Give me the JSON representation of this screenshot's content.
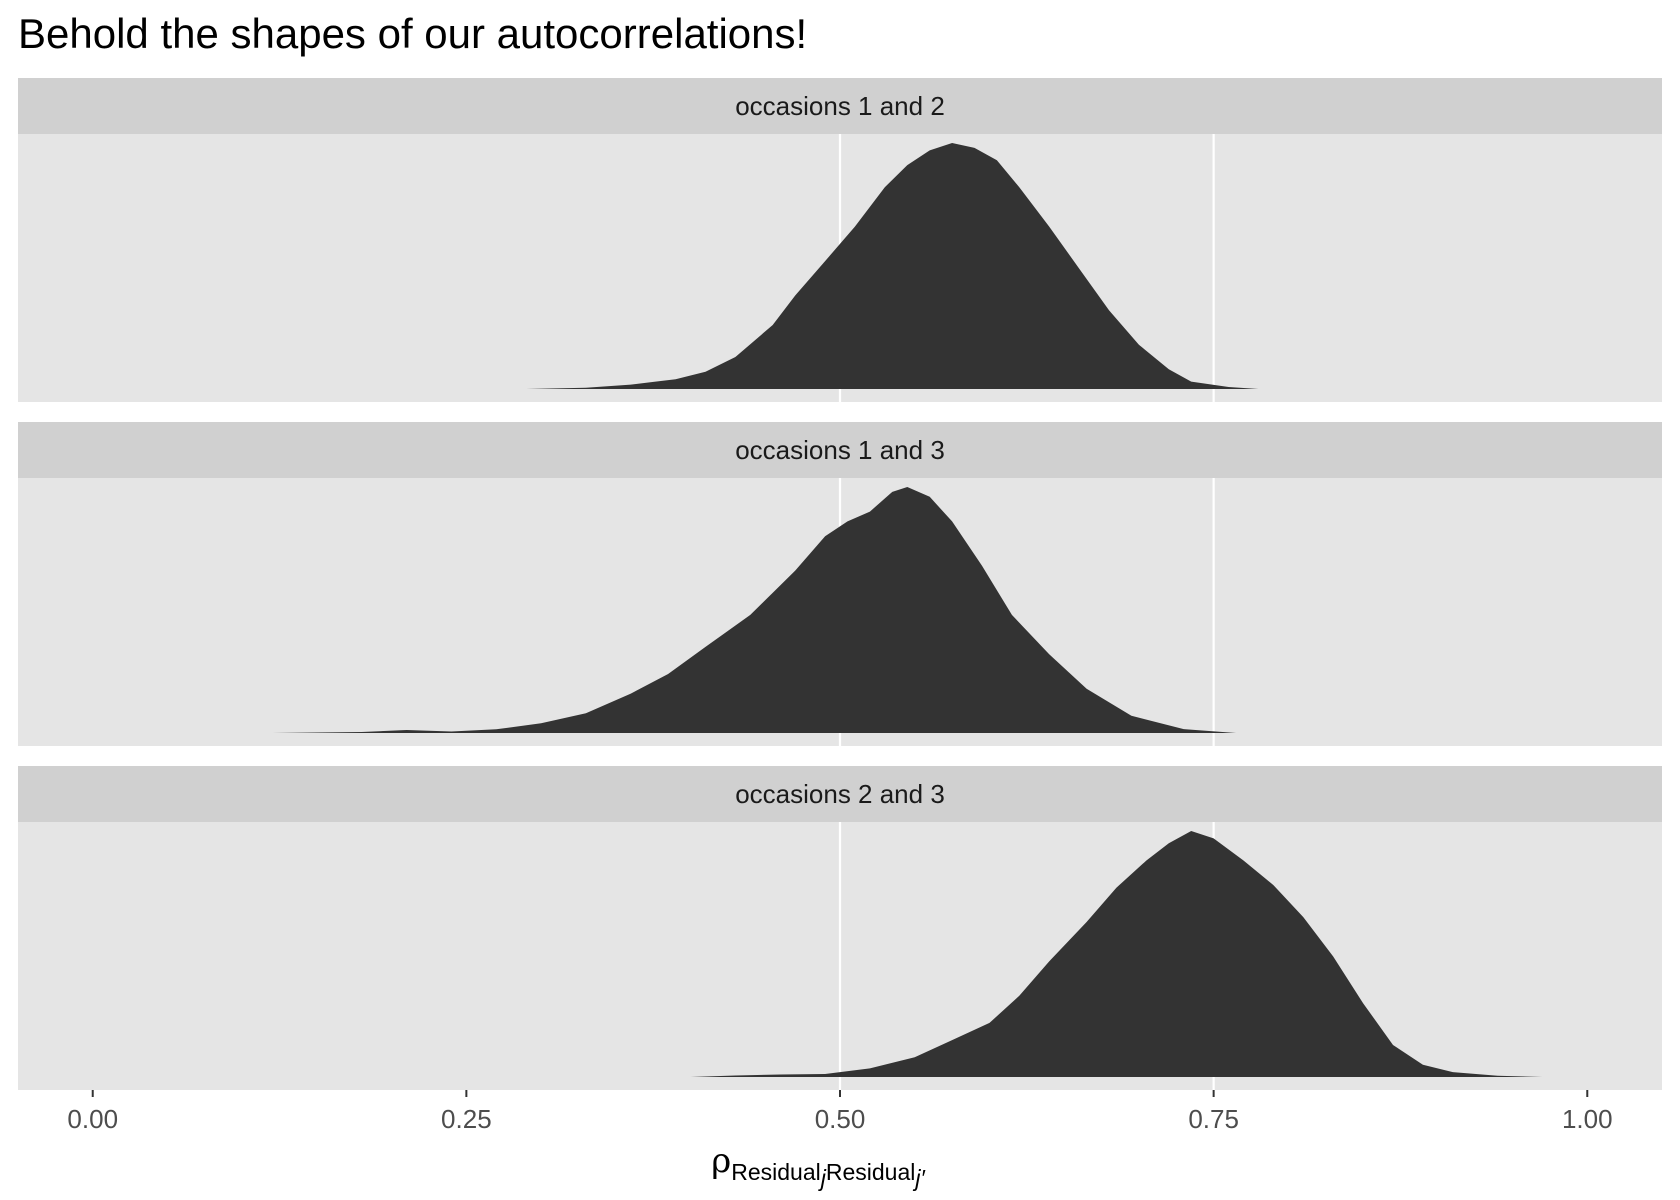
{
  "title": "Behold the shapes of our autocorrelations!",
  "colors": {
    "panel_background": "#e5e5e5",
    "strip_background": "#d0d0d0",
    "grid": "#ffffff",
    "density_fill": "#333333",
    "tick_text": "#4d4d4d"
  },
  "chart_data": {
    "type": "area",
    "title": "Behold the shapes of our autocorrelations!",
    "xlabel": "ρ Residual_j Residual_j'",
    "xlabel_parts": {
      "symbol": "ρ",
      "sub1": "Residual",
      "sub1_index": "j",
      "sub2": "Residual",
      "sub2_index": "j′"
    },
    "ylabel": "",
    "xlim": [
      -0.05,
      1.05
    ],
    "x_major_breaks": [
      0.5,
      0.75
    ],
    "x_ticks": [
      0.0,
      0.25,
      0.5,
      0.75,
      1.0
    ],
    "x_tick_labels": [
      "0.00",
      "0.25",
      "0.50",
      "0.75",
      "1.00"
    ],
    "grid": "vertical major lines only",
    "y_axis_shown": false,
    "facets": [
      {
        "strip": "occasions 1 and 2",
        "density": [
          [
            0.29,
            0.0
          ],
          [
            0.33,
            0.005
          ],
          [
            0.36,
            0.018
          ],
          [
            0.39,
            0.04
          ],
          [
            0.41,
            0.07
          ],
          [
            0.43,
            0.13
          ],
          [
            0.455,
            0.26
          ],
          [
            0.47,
            0.38
          ],
          [
            0.49,
            0.52
          ],
          [
            0.51,
            0.66
          ],
          [
            0.53,
            0.82
          ],
          [
            0.545,
            0.91
          ],
          [
            0.56,
            0.97
          ],
          [
            0.575,
            1.0
          ],
          [
            0.59,
            0.98
          ],
          [
            0.605,
            0.93
          ],
          [
            0.62,
            0.82
          ],
          [
            0.64,
            0.66
          ],
          [
            0.66,
            0.49
          ],
          [
            0.68,
            0.32
          ],
          [
            0.7,
            0.18
          ],
          [
            0.72,
            0.08
          ],
          [
            0.735,
            0.03
          ],
          [
            0.76,
            0.008
          ],
          [
            0.78,
            0.0
          ]
        ]
      },
      {
        "strip": "occasions 1 and 3",
        "density": [
          [
            0.12,
            0.0
          ],
          [
            0.18,
            0.004
          ],
          [
            0.21,
            0.012
          ],
          [
            0.24,
            0.006
          ],
          [
            0.27,
            0.015
          ],
          [
            0.3,
            0.04
          ],
          [
            0.33,
            0.08
          ],
          [
            0.36,
            0.16
          ],
          [
            0.385,
            0.24
          ],
          [
            0.41,
            0.35
          ],
          [
            0.44,
            0.48
          ],
          [
            0.47,
            0.66
          ],
          [
            0.49,
            0.8
          ],
          [
            0.505,
            0.86
          ],
          [
            0.52,
            0.9
          ],
          [
            0.535,
            0.98
          ],
          [
            0.545,
            1.0
          ],
          [
            0.56,
            0.96
          ],
          [
            0.575,
            0.86
          ],
          [
            0.595,
            0.68
          ],
          [
            0.615,
            0.48
          ],
          [
            0.64,
            0.32
          ],
          [
            0.665,
            0.18
          ],
          [
            0.695,
            0.07
          ],
          [
            0.73,
            0.016
          ],
          [
            0.765,
            0.0
          ]
        ]
      },
      {
        "strip": "occasions 2 and 3",
        "density": [
          [
            0.4,
            0.0
          ],
          [
            0.43,
            0.006
          ],
          [
            0.46,
            0.01
          ],
          [
            0.49,
            0.012
          ],
          [
            0.52,
            0.035
          ],
          [
            0.55,
            0.08
          ],
          [
            0.575,
            0.15
          ],
          [
            0.6,
            0.22
          ],
          [
            0.62,
            0.33
          ],
          [
            0.64,
            0.47
          ],
          [
            0.665,
            0.63
          ],
          [
            0.685,
            0.77
          ],
          [
            0.705,
            0.88
          ],
          [
            0.72,
            0.95
          ],
          [
            0.735,
            1.0
          ],
          [
            0.75,
            0.97
          ],
          [
            0.77,
            0.88
          ],
          [
            0.79,
            0.78
          ],
          [
            0.81,
            0.65
          ],
          [
            0.83,
            0.49
          ],
          [
            0.85,
            0.3
          ],
          [
            0.87,
            0.13
          ],
          [
            0.89,
            0.05
          ],
          [
            0.91,
            0.02
          ],
          [
            0.94,
            0.005
          ],
          [
            0.97,
            0.0
          ]
        ]
      }
    ]
  }
}
